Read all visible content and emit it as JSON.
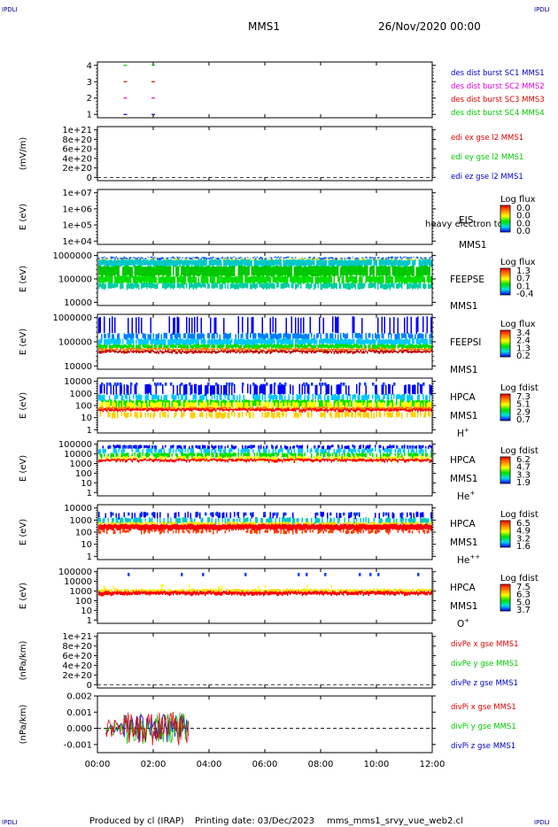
{
  "corner_marks": [
    "IPDLI",
    "IPDLI",
    "IPDLI",
    "IPDLI"
  ],
  "header": {
    "title": "MMS1",
    "date": "26/Nov/2020 00:00"
  },
  "footer": {
    "produced": "Produced by cl (IRAP)",
    "printed": "Printing date: 03/Dec/2023",
    "file": "mms_mms1_srvy_vue_web2.cl"
  },
  "colors": {
    "blue": "#0000c8",
    "magenta": "#e000e0",
    "red": "#e00000",
    "green": "#00c800"
  },
  "chart_data": {
    "type": "heatmap",
    "x_ticks": [
      "00:00",
      "02:00",
      "04:00",
      "06:00",
      "08:00",
      "10:00",
      "12:00"
    ],
    "xlim_hours": [
      0,
      12
    ],
    "panels": [
      {
        "type": "line",
        "ylabel": "",
        "y_ticks": [
          "4",
          "3",
          "2",
          "1"
        ],
        "legend": [
          {
            "text": "des dist burst SC1 MMS1",
            "color": "#0000c8"
          },
          {
            "text": "des dist burst SC2 MMS2",
            "color": "#e000e0"
          },
          {
            "text": "des dist burst SC3 MMS3",
            "color": "#e00000"
          },
          {
            "text": "des dist burst SC4 MMS4",
            "color": "#00c800"
          }
        ],
        "burst_times_hours": [
          1.0,
          2.0
        ]
      },
      {
        "type": "line",
        "ylabel": "(mV/m)",
        "y_ticks": [
          "1e+21",
          "8e+20",
          "6e+20",
          "4e+20",
          "2e+20",
          "0"
        ],
        "legend": [
          {
            "text": "edi ex gse l2 MMS1",
            "color": "#e00000"
          },
          {
            "text": "edi ey gse l2 MMS1",
            "color": "#00c800"
          },
          {
            "text": "edi ez gse l2 MMS1",
            "color": "#0000c8"
          }
        ]
      },
      {
        "type": "heatmap",
        "ylabel": "E (eV)",
        "y_ticks": [
          "1e+07",
          "1e+06",
          "1e+05",
          "1e+04"
        ],
        "instrument": [
          "EIS",
          "MMS1"
        ],
        "overlay_text": "heavy electron to",
        "colorbar_title": "Log flux",
        "colorbar_ticks": [
          "0.0",
          "0.0",
          "0.0",
          "0.0"
        ]
      },
      {
        "type": "heatmap",
        "ylabel": "E (eV)",
        "y_ticks": [
          "1000000",
          "100000",
          "10000"
        ],
        "instrument": [
          "FEEPSE",
          "MMS1"
        ],
        "colorbar_title": "Log flux",
        "colorbar_ticks": [
          "1.3",
          "0.7",
          "0.1",
          "-0.4"
        ]
      },
      {
        "type": "heatmap",
        "ylabel": "E (eV)",
        "y_ticks": [
          "1000000",
          "100000",
          "10000"
        ],
        "instrument": [
          "FEEPSI",
          "MMS1"
        ],
        "colorbar_title": "Log flux",
        "colorbar_ticks": [
          "3.4",
          "2.4",
          "1.3",
          "0.2"
        ]
      },
      {
        "type": "heatmap",
        "ylabel": "E (eV)",
        "y_ticks": [
          "10000",
          "1000",
          "100",
          "10",
          "1"
        ],
        "instrument": [
          "HPCA",
          "MMS1"
        ],
        "species": "H",
        "species_sup": "+",
        "colorbar_title": "Log fdist",
        "colorbar_ticks": [
          "7.3",
          "5.1",
          "2.9",
          "0.7"
        ]
      },
      {
        "type": "heatmap",
        "ylabel": "E (eV)",
        "y_ticks": [
          "100000",
          "10000",
          "1000",
          "100",
          "10",
          "1"
        ],
        "instrument": [
          "HPCA",
          "MMS1"
        ],
        "species": "He",
        "species_sup": "+",
        "colorbar_title": "Log fdist",
        "colorbar_ticks": [
          "6.2",
          "4.7",
          "3.3",
          "1.9"
        ]
      },
      {
        "type": "heatmap",
        "ylabel": "E (eV)",
        "y_ticks": [
          "10000",
          "1000",
          "100",
          "10",
          "1"
        ],
        "instrument": [
          "HPCA",
          "MMS1"
        ],
        "species": "He",
        "species_sup": "++",
        "colorbar_title": "Log fdist",
        "colorbar_ticks": [
          "6.5",
          "4.9",
          "3.2",
          "1.6"
        ]
      },
      {
        "type": "heatmap",
        "ylabel": "E (eV)",
        "y_ticks": [
          "100000",
          "10000",
          "1000",
          "100",
          "10",
          "1"
        ],
        "instrument": [
          "HPCA",
          "MMS1"
        ],
        "species": "O",
        "species_sup": "+",
        "colorbar_title": "Log fdist",
        "colorbar_ticks": [
          "7.5",
          "6.3",
          "5.0",
          "3.7"
        ]
      },
      {
        "type": "line",
        "ylabel": "(nPa/km)",
        "y_ticks": [
          "1e+21",
          "8e+20",
          "6e+20",
          "4e+20",
          "2e+20",
          "0"
        ],
        "legend": [
          {
            "text": "divPe x gse MMS1",
            "color": "#e00000"
          },
          {
            "text": "divPe y gse MMS1",
            "color": "#00c800"
          },
          {
            "text": "divPe z gse MMS1",
            "color": "#0000c8"
          }
        ]
      },
      {
        "type": "line",
        "ylabel": "(nPa/km)",
        "y_ticks": [
          "0.002",
          "0.001",
          "0.000",
          "-0.001"
        ],
        "ylim": [
          -0.0015,
          0.002
        ],
        "data_xlim_hours": [
          0.3,
          3.3
        ],
        "legend": [
          {
            "text": "divPi x gse MMS1",
            "color": "#e00000"
          },
          {
            "text": "divPi y gse MMS1",
            "color": "#00c800"
          },
          {
            "text": "divPi z gse MMS1",
            "color": "#0000c8"
          }
        ]
      }
    ]
  }
}
